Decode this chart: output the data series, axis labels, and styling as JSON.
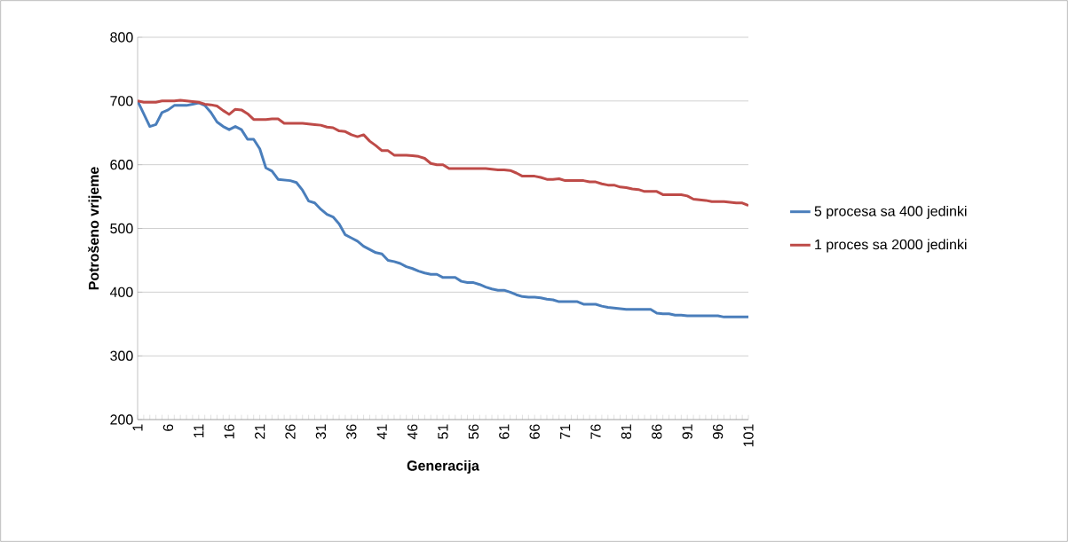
{
  "chart_data": {
    "type": "line",
    "xlabel": "Generacija",
    "ylabel": "Potrošeno vrijeme",
    "categories": [
      "1",
      null,
      null,
      null,
      null,
      "6",
      null,
      null,
      null,
      null,
      "11",
      null,
      null,
      null,
      null,
      "16",
      null,
      null,
      null,
      null,
      "21",
      null,
      null,
      null,
      null,
      "26",
      null,
      null,
      null,
      null,
      "31",
      null,
      null,
      null,
      null,
      "36",
      null,
      null,
      null,
      null,
      "41",
      null,
      null,
      null,
      null,
      "46",
      null,
      null,
      null,
      null,
      "51",
      null,
      null,
      null,
      null,
      "56",
      null,
      null,
      null,
      null,
      "61",
      null,
      null,
      null,
      null,
      "66",
      null,
      null,
      null,
      null,
      "71",
      null,
      null,
      null,
      null,
      "76",
      null,
      null,
      null,
      null,
      "81",
      null,
      null,
      null,
      null,
      "86",
      null,
      null,
      null,
      null,
      "91",
      null,
      null,
      null,
      null,
      "96",
      null,
      null,
      null,
      null,
      "101"
    ],
    "series": [
      {
        "name": "5 procesa sa 400 jedinki",
        "color": "#4a7ebb",
        "values": [
          700,
          680,
          660,
          663,
          682,
          686,
          693,
          693,
          693,
          695,
          697,
          693,
          682,
          667,
          660,
          655,
          660,
          655,
          640,
          640,
          625,
          595,
          590,
          577,
          576,
          575,
          572,
          560,
          543,
          540,
          530,
          522,
          518,
          507,
          490,
          485,
          480,
          472,
          467,
          462,
          460,
          450,
          448,
          445,
          440,
          437,
          433,
          430,
          428,
          428,
          423,
          423,
          423,
          417,
          415,
          415,
          412,
          408,
          405,
          403,
          403,
          400,
          396,
          393,
          392,
          392,
          391,
          389,
          388,
          385,
          385,
          385,
          385,
          381,
          381,
          381,
          378,
          376,
          375,
          374,
          373,
          373,
          373,
          373,
          373,
          367,
          366,
          366,
          364,
          364,
          363,
          363,
          363,
          363,
          363,
          363,
          361,
          361,
          361,
          361,
          361
        ]
      },
      {
        "name": "1 proces sa 2000 jedinki",
        "color": "#be4b48",
        "values": [
          700,
          698,
          698,
          698,
          700,
          700,
          700,
          701,
          700,
          699,
          698,
          695,
          694,
          692,
          685,
          679,
          687,
          686,
          680,
          671,
          671,
          671,
          672,
          672,
          665,
          665,
          665,
          665,
          664,
          663,
          662,
          659,
          658,
          653,
          652,
          647,
          644,
          647,
          637,
          630,
          622,
          622,
          615,
          615,
          615,
          614,
          613,
          610,
          602,
          600,
          600,
          594,
          594,
          594,
          594,
          594,
          594,
          594,
          593,
          592,
          592,
          591,
          587,
          582,
          582,
          582,
          580,
          577,
          577,
          578,
          575,
          575,
          575,
          575,
          573,
          573,
          570,
          568,
          568,
          565,
          564,
          562,
          561,
          558,
          558,
          558,
          553,
          553,
          553,
          553,
          551,
          546,
          545,
          544,
          542,
          542,
          542,
          541,
          540,
          540,
          536
        ]
      }
    ],
    "ylim": [
      200,
      800
    ],
    "yticks": [
      200,
      300,
      400,
      500,
      600,
      700,
      800
    ],
    "grid": "y",
    "legend": "right",
    "marker": "none",
    "line_style": "solid"
  }
}
